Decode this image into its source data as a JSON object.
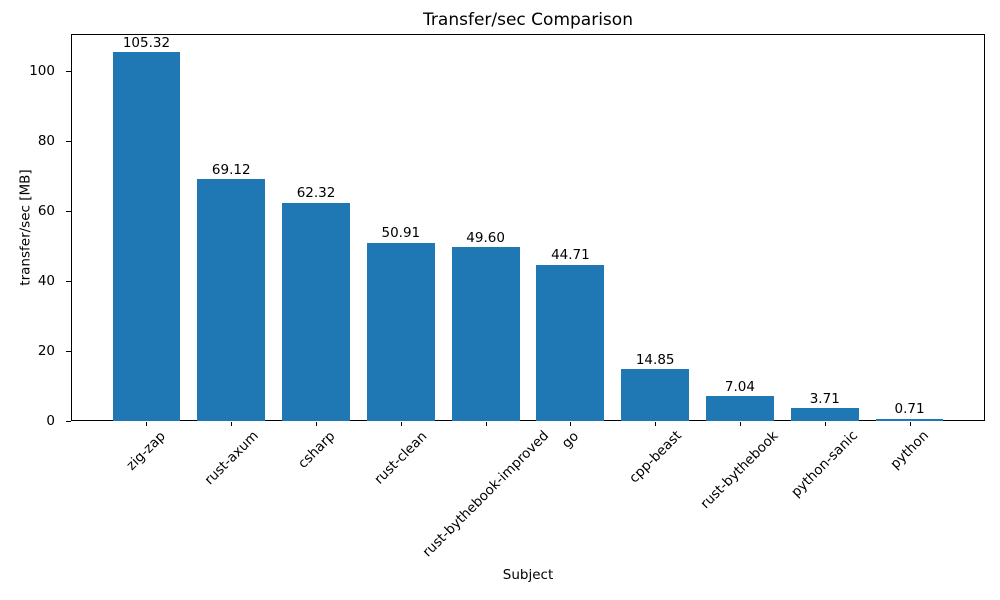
{
  "chart_data": {
    "type": "bar",
    "title": "Transfer/sec Comparison",
    "xlabel": "Subject",
    "ylabel": "transfer/sec [MB]",
    "categories": [
      "zig-zap",
      "rust-axum",
      "csharp",
      "rust-clean",
      "rust-bythebook-improved",
      "go",
      "cpp-beast",
      "rust-bythebook",
      "python-sanic",
      "python"
    ],
    "values": [
      105.32,
      69.12,
      62.32,
      50.91,
      49.6,
      44.71,
      14.85,
      7.04,
      3.71,
      0.71
    ],
    "value_labels": [
      "105.32",
      "69.12",
      "62.32",
      "50.91",
      "49.60",
      "44.71",
      "14.85",
      "7.04",
      "3.71",
      "0.71"
    ],
    "yticks": [
      0,
      20,
      40,
      60,
      80,
      100
    ],
    "ylim": [
      0,
      110.59
    ],
    "xlim": [
      -0.89,
      9.89
    ],
    "bar_color": "#1f77b4",
    "axis_color": "#000000",
    "text_color": "#000000",
    "grid": false,
    "legend_position": "none",
    "x_tick_rotation_deg": 45
  }
}
